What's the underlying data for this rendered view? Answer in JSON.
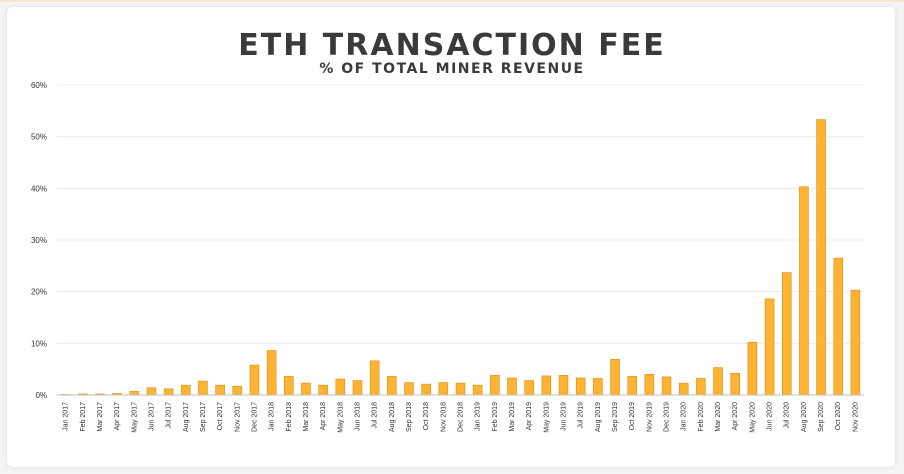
{
  "chart_data": {
    "type": "bar",
    "title": "ETH TRANSACTION FEE",
    "subtitle": "% OF TOTAL MINER REVENUE",
    "xlabel": "",
    "ylabel": "",
    "ylim": [
      0,
      60
    ],
    "yticks": [
      0,
      10,
      20,
      30,
      40,
      50,
      60
    ],
    "ytick_labels": [
      "0%",
      "10%",
      "20%",
      "30%",
      "40%",
      "50%",
      "60%"
    ],
    "grid": true,
    "legend": "none",
    "bar_color": "#ffb333",
    "bar_edge_color": "#d98c12",
    "categories": [
      "Jan 2017",
      "Feb 2017",
      "Mar 2017",
      "Apr 2017",
      "May 2017",
      "Jun 2017",
      "Jul 2017",
      "Aug 2017",
      "Sep 2017",
      "Oct 2017",
      "Nov 2017",
      "Dec 2017",
      "Jan 2018",
      "Feb 2018",
      "Mar 2018",
      "Apr 2018",
      "May 2018",
      "Jun 2018",
      "Jul 2018",
      "Aug 2018",
      "Sep 2018",
      "Oct 2018",
      "Nov 2018",
      "Dec 2018",
      "Jan 2019",
      "Feb 2019",
      "Mar 2019",
      "Apr 2019",
      "May 2019",
      "Jun 2019",
      "Jul 2019",
      "Aug 2019",
      "Sep 2019",
      "Oct 2019",
      "Nov 2019",
      "Dec 2019",
      "Jan 2020",
      "Feb 2020",
      "Mar 2020",
      "Apr 2020",
      "May 2020",
      "Jun 2020",
      "Jul 2020",
      "Aug 2020",
      "Sep 2020",
      "Oct 2020",
      "Nov 2020"
    ],
    "values": [
      0.1,
      0.2,
      0.2,
      0.3,
      0.7,
      1.4,
      1.2,
      1.9,
      2.7,
      1.9,
      1.7,
      5.8,
      8.6,
      3.6,
      2.3,
      1.9,
      3.1,
      2.8,
      6.6,
      3.6,
      2.4,
      2.1,
      2.4,
      2.3,
      1.9,
      3.8,
      3.3,
      2.8,
      3.7,
      3.8,
      3.3,
      3.2,
      6.9,
      3.6,
      4.0,
      3.5,
      2.3,
      3.2,
      5.3,
      4.2,
      10.2,
      18.6,
      23.7,
      40.3,
      53.3,
      26.5,
      20.3
    ]
  }
}
